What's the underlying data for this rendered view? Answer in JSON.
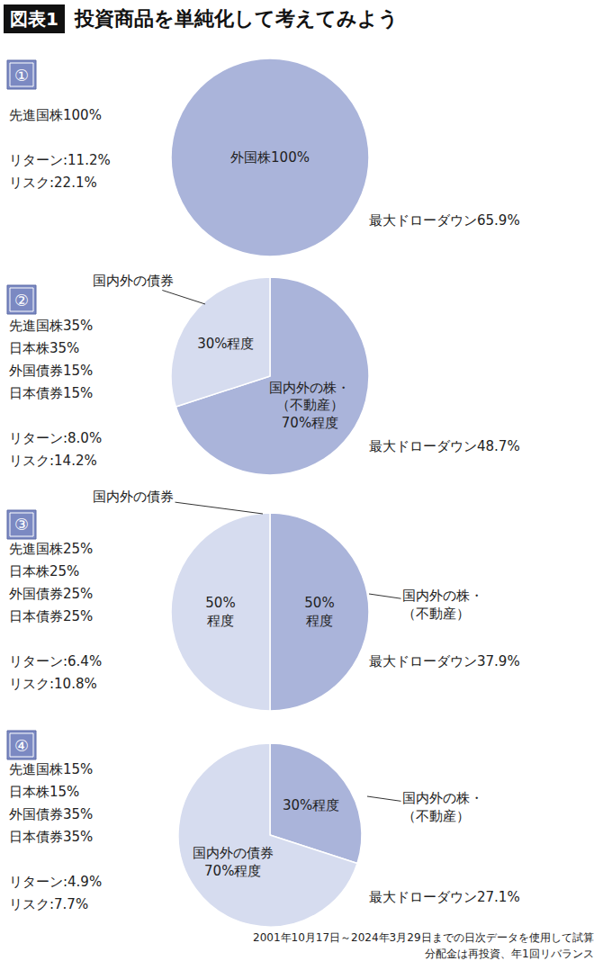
{
  "figure_label": "図表1",
  "title": "投資商品を単純化して考えてみよう",
  "notes": [
    "2001年10月17日～2024年3月29日までの日次データを使用して試算",
    "分配金は再投資、年1回リバランス"
  ],
  "chart_data": [
    {
      "type": "pie",
      "label": "①",
      "allocation": [
        "先進国株100%"
      ],
      "stats": [
        "リターン:11.2%",
        "リスク:22.1%"
      ],
      "max_drawdown": "最大ドローダウン65.9%",
      "values": [
        100
      ],
      "colors": [
        "#aab4da"
      ],
      "value_labels": [
        "外国株100%"
      ],
      "callouts": [
        null
      ]
    },
    {
      "type": "pie",
      "label": "②",
      "allocation": [
        "先進国株35%",
        "日本株35%",
        "外国債券15%",
        "日本債券15%"
      ],
      "stats": [
        "リターン:8.0%",
        "リスク:14.2%"
      ],
      "max_drawdown": "最大ドローダウン48.7%",
      "values": [
        70,
        30
      ],
      "colors": [
        "#aab4da",
        "#d6dcef"
      ],
      "value_labels": [
        "国内外の株・\n（不動産）\n70%程度",
        "30%程度"
      ],
      "callouts": [
        null,
        "国内外の債券"
      ]
    },
    {
      "type": "pie",
      "label": "③",
      "allocation": [
        "先進国株25%",
        "日本株25%",
        "外国債券25%",
        "日本債券25%"
      ],
      "stats": [
        "リターン:6.4%",
        "リスク:10.8%"
      ],
      "max_drawdown": "最大ドローダウン37.9%",
      "values": [
        50,
        50
      ],
      "colors": [
        "#aab4da",
        "#d6dcef"
      ],
      "value_labels": [
        "50%\n程度",
        "50%\n程度"
      ],
      "callouts": [
        "国内外の株・\n（不動産）",
        "国内外の債券"
      ]
    },
    {
      "type": "pie",
      "label": "④",
      "allocation": [
        "先進国株15%",
        "日本株15%",
        "外国債券35%",
        "日本債券35%"
      ],
      "stats": [
        "リターン:4.9%",
        "リスク:7.7%"
      ],
      "max_drawdown": "最大ドローダウン27.1%",
      "values": [
        30,
        70
      ],
      "colors": [
        "#aab4da",
        "#d6dcef"
      ],
      "value_labels": [
        "30%程度",
        "国内外の債券\n70%程度"
      ],
      "callouts": [
        "国内外の株・\n（不動産）",
        null
      ]
    }
  ]
}
